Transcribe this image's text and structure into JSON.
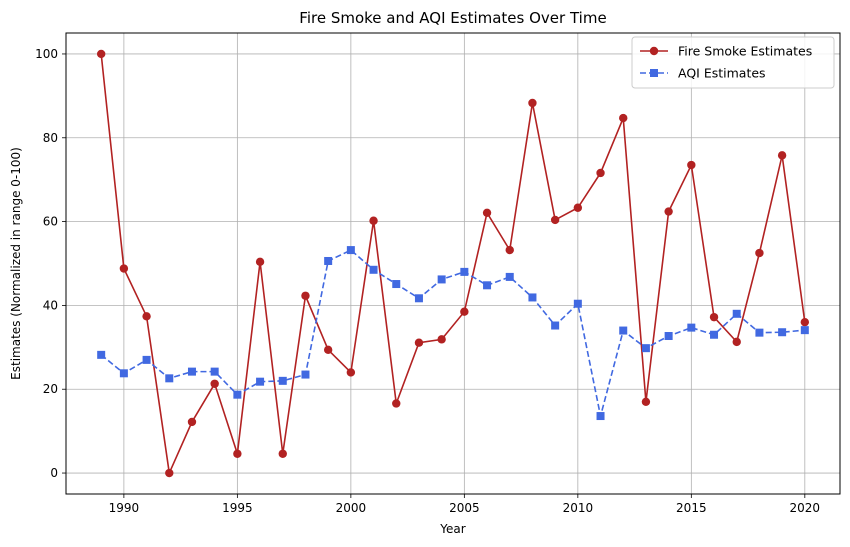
{
  "chart_data": {
    "type": "line",
    "title": "Fire Smoke and AQI Estimates Over Time",
    "xlabel": "Year",
    "ylabel": "Estimates (Normalized in range 0-100)",
    "xlim": [
      1987.45,
      2021.55
    ],
    "ylim": [
      -5,
      105
    ],
    "xticks": [
      1990,
      1995,
      2000,
      2005,
      2010,
      2015,
      2020
    ],
    "yticks": [
      0,
      20,
      40,
      60,
      80,
      100
    ],
    "grid": true,
    "legend_position": "top-right",
    "x": [
      1989,
      1990,
      1991,
      1992,
      1993,
      1994,
      1995,
      1996,
      1997,
      1998,
      1999,
      2000,
      2001,
      2002,
      2003,
      2004,
      2005,
      2006,
      2007,
      2008,
      2009,
      2010,
      2011,
      2012,
      2013,
      2014,
      2015,
      2016,
      2017,
      2018,
      2019,
      2020
    ],
    "series": [
      {
        "name": "Fire Smoke Estimates",
        "color": "#b22222",
        "marker": "circle",
        "line_style": "solid",
        "values": [
          100,
          48.8,
          37.4,
          0,
          12.2,
          21.3,
          4.6,
          50.4,
          4.6,
          42.3,
          29.4,
          24.0,
          60.2,
          16.6,
          31.1,
          31.9,
          38.5,
          62.1,
          53.2,
          88.3,
          60.4,
          63.3,
          71.6,
          84.7,
          17.0,
          62.4,
          73.5,
          37.2,
          31.3,
          52.5,
          75.8,
          36.0
        ]
      },
      {
        "name": "AQI Estimates",
        "color": "#4169e1",
        "marker": "square",
        "line_style": "dashed",
        "values": [
          28.2,
          23.8,
          27.0,
          22.6,
          24.2,
          24.2,
          18.7,
          21.8,
          22.0,
          23.5,
          50.6,
          53.2,
          48.5,
          45.1,
          41.7,
          46.2,
          48.0,
          44.8,
          46.8,
          41.9,
          35.2,
          40.4,
          13.6,
          34.0,
          29.8,
          32.7,
          34.7,
          33.0,
          38.0,
          33.5,
          33.6,
          34.1
        ]
      }
    ]
  }
}
